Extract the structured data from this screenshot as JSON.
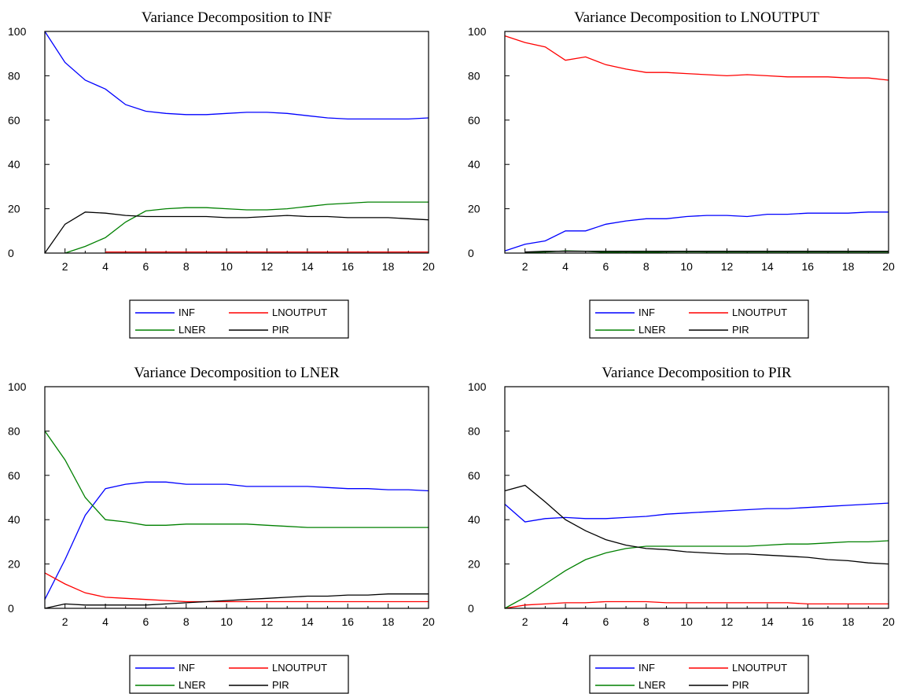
{
  "chart_data": [
    {
      "type": "line",
      "title": "Variance Decomposition to INF",
      "xlim": [
        1,
        20
      ],
      "ylim": [
        0,
        100
      ],
      "xticks": [
        "2",
        "4",
        "6",
        "8",
        "10",
        "12",
        "14",
        "16",
        "18",
        "20"
      ],
      "yticks": [
        "0",
        "20",
        "40",
        "60",
        "80",
        "100"
      ],
      "legend": [
        "INF",
        "LNOUTPUT",
        "LNER",
        "PIR"
      ],
      "x": [
        1,
        2,
        3,
        4,
        5,
        6,
        7,
        8,
        9,
        10,
        11,
        12,
        13,
        14,
        15,
        16,
        17,
        18,
        19,
        20
      ],
      "series": [
        {
          "name": "INF",
          "color": "#0000ff",
          "values": [
            100,
            86,
            78,
            74,
            67,
            64,
            63,
            62.5,
            62.5,
            63,
            63.5,
            63.5,
            63,
            62,
            61,
            60.5,
            60.5,
            60.5,
            60.5,
            61
          ]
        },
        {
          "name": "LNOUTPUT",
          "color": "#ff0000",
          "values": [
            null,
            null,
            null,
            0.5,
            0.5,
            0.5,
            0.5,
            0.5,
            0.5,
            0.5,
            0.5,
            0.5,
            0.5,
            0.5,
            0.5,
            0.5,
            0.5,
            0.5,
            0.5,
            0.5
          ]
        },
        {
          "name": "LNER",
          "color": "#008000",
          "values": [
            null,
            0,
            3,
            7,
            14,
            19,
            20,
            20.5,
            20.5,
            20,
            19.5,
            19.5,
            20,
            21,
            22,
            22.5,
            23,
            23,
            23,
            23
          ]
        },
        {
          "name": "PIR",
          "color": "#000000",
          "values": [
            0,
            13,
            18.5,
            18,
            17,
            16.5,
            16.5,
            16.5,
            16.5,
            16,
            16,
            16.5,
            17,
            16.5,
            16.5,
            16,
            16,
            16,
            15.5,
            15
          ]
        }
      ]
    },
    {
      "type": "line",
      "title": "Variance Decomposition to LNOUTPUT",
      "xlim": [
        1,
        20
      ],
      "ylim": [
        0,
        100
      ],
      "xticks": [
        "2",
        "4",
        "6",
        "8",
        "10",
        "12",
        "14",
        "16",
        "18",
        "20"
      ],
      "yticks": [
        "0",
        "20",
        "40",
        "60",
        "80",
        "100"
      ],
      "legend": [
        "INF",
        "LNOUTPUT",
        "LNER",
        "PIR"
      ],
      "x": [
        1,
        2,
        3,
        4,
        5,
        6,
        7,
        8,
        9,
        10,
        11,
        12,
        13,
        14,
        15,
        16,
        17,
        18,
        19,
        20
      ],
      "series": [
        {
          "name": "INF",
          "color": "#0000ff",
          "values": [
            1,
            4,
            5.5,
            10,
            10,
            13,
            14.5,
            15.5,
            15.5,
            16.5,
            17,
            17,
            16.5,
            17.5,
            17.5,
            18,
            18,
            18,
            18.5,
            18.5
          ]
        },
        {
          "name": "LNOUTPUT",
          "color": "#ff0000",
          "values": [
            98,
            95,
            93,
            87,
            88.5,
            85,
            83,
            81.5,
            81.5,
            81,
            80.5,
            80,
            80.5,
            80,
            79.5,
            79.5,
            79.5,
            79,
            79,
            78
          ]
        },
        {
          "name": "LNER",
          "color": "#008000",
          "values": [
            null,
            0.2,
            0.5,
            1,
            0.8,
            0.3,
            0.5,
            0.3,
            0.5,
            0.6,
            0.5,
            0.5,
            0.5,
            0.5,
            0.5,
            0.5,
            0.5,
            0.5,
            0.5,
            0.5
          ]
        },
        {
          "name": "PIR",
          "color": "#000000",
          "values": [
            null,
            0.5,
            0.8,
            0.8,
            0.8,
            0.8,
            0.8,
            0.8,
            0.8,
            0.8,
            0.8,
            0.8,
            0.8,
            0.8,
            0.8,
            0.8,
            0.8,
            0.8,
            0.8,
            0.8
          ]
        }
      ]
    },
    {
      "type": "line",
      "title": "Variance Decomposition to LNER",
      "xlim": [
        1,
        20
      ],
      "ylim": [
        0,
        100
      ],
      "xticks": [
        "2",
        "4",
        "6",
        "8",
        "10",
        "12",
        "14",
        "16",
        "18",
        "20"
      ],
      "yticks": [
        "0",
        "20",
        "40",
        "60",
        "80",
        "100"
      ],
      "legend": [
        "INF",
        "LNOUTPUT",
        "LNER",
        "PIR"
      ],
      "x": [
        1,
        2,
        3,
        4,
        5,
        6,
        7,
        8,
        9,
        10,
        11,
        12,
        13,
        14,
        15,
        16,
        17,
        18,
        19,
        20
      ],
      "series": [
        {
          "name": "INF",
          "color": "#0000ff",
          "values": [
            4,
            22,
            42,
            54,
            56,
            57,
            57,
            56,
            56,
            56,
            55,
            55,
            55,
            55,
            54.5,
            54,
            54,
            53.5,
            53.5,
            53
          ]
        },
        {
          "name": "LNOUTPUT",
          "color": "#ff0000",
          "values": [
            16,
            11,
            7,
            5,
            4.5,
            4,
            3.5,
            3,
            3,
            3,
            3,
            3,
            3,
            3,
            3,
            3,
            3,
            3,
            3,
            3
          ]
        },
        {
          "name": "LNER",
          "color": "#008000",
          "values": [
            80,
            67,
            50,
            40,
            39,
            37.5,
            37.5,
            38,
            38,
            38,
            38,
            37.5,
            37,
            36.5,
            36.5,
            36.5,
            36.5,
            36.5,
            36.5,
            36.5
          ]
        },
        {
          "name": "PIR",
          "color": "#000000",
          "values": [
            0,
            2,
            1.5,
            1.5,
            1.5,
            1.5,
            2,
            2.5,
            3,
            3.5,
            4,
            4.5,
            5,
            5.5,
            5.5,
            6,
            6,
            6.5,
            6.5,
            6.5
          ]
        }
      ]
    },
    {
      "type": "line",
      "title": "Variance Decomposition to PIR",
      "xlim": [
        1,
        20
      ],
      "ylim": [
        0,
        100
      ],
      "xticks": [
        "2",
        "4",
        "6",
        "8",
        "10",
        "12",
        "14",
        "16",
        "18",
        "20"
      ],
      "yticks": [
        "0",
        "20",
        "40",
        "60",
        "80",
        "100"
      ],
      "legend": [
        "INF",
        "LNOUTPUT",
        "LNER",
        "PIR"
      ],
      "x": [
        1,
        2,
        3,
        4,
        5,
        6,
        7,
        8,
        9,
        10,
        11,
        12,
        13,
        14,
        15,
        16,
        17,
        18,
        19,
        20
      ],
      "series": [
        {
          "name": "INF",
          "color": "#0000ff",
          "values": [
            47,
            39,
            40.5,
            41,
            40.5,
            40.5,
            41,
            41.5,
            42.5,
            43,
            43.5,
            44,
            44.5,
            45,
            45,
            45.5,
            46,
            46.5,
            47,
            47.5
          ]
        },
        {
          "name": "LNOUTPUT",
          "color": "#ff0000",
          "values": [
            0,
            1.5,
            2,
            2.5,
            2.5,
            3,
            3,
            3,
            2.5,
            2.5,
            2.5,
            2.5,
            2.5,
            2.5,
            2.5,
            2,
            2,
            2,
            2,
            2
          ]
        },
        {
          "name": "LNER",
          "color": "#008000",
          "values": [
            0,
            5,
            11,
            17,
            22,
            25,
            27,
            28,
            28,
            28,
            28,
            28,
            28,
            28.5,
            29,
            29,
            29.5,
            30,
            30,
            30.5
          ]
        },
        {
          "name": "PIR",
          "color": "#000000",
          "values": [
            53,
            55.5,
            48,
            40,
            35,
            31,
            28.5,
            27,
            26.5,
            25.5,
            25,
            24.5,
            24.5,
            24,
            23.5,
            23,
            22,
            21.5,
            20.5,
            20
          ]
        }
      ]
    }
  ]
}
